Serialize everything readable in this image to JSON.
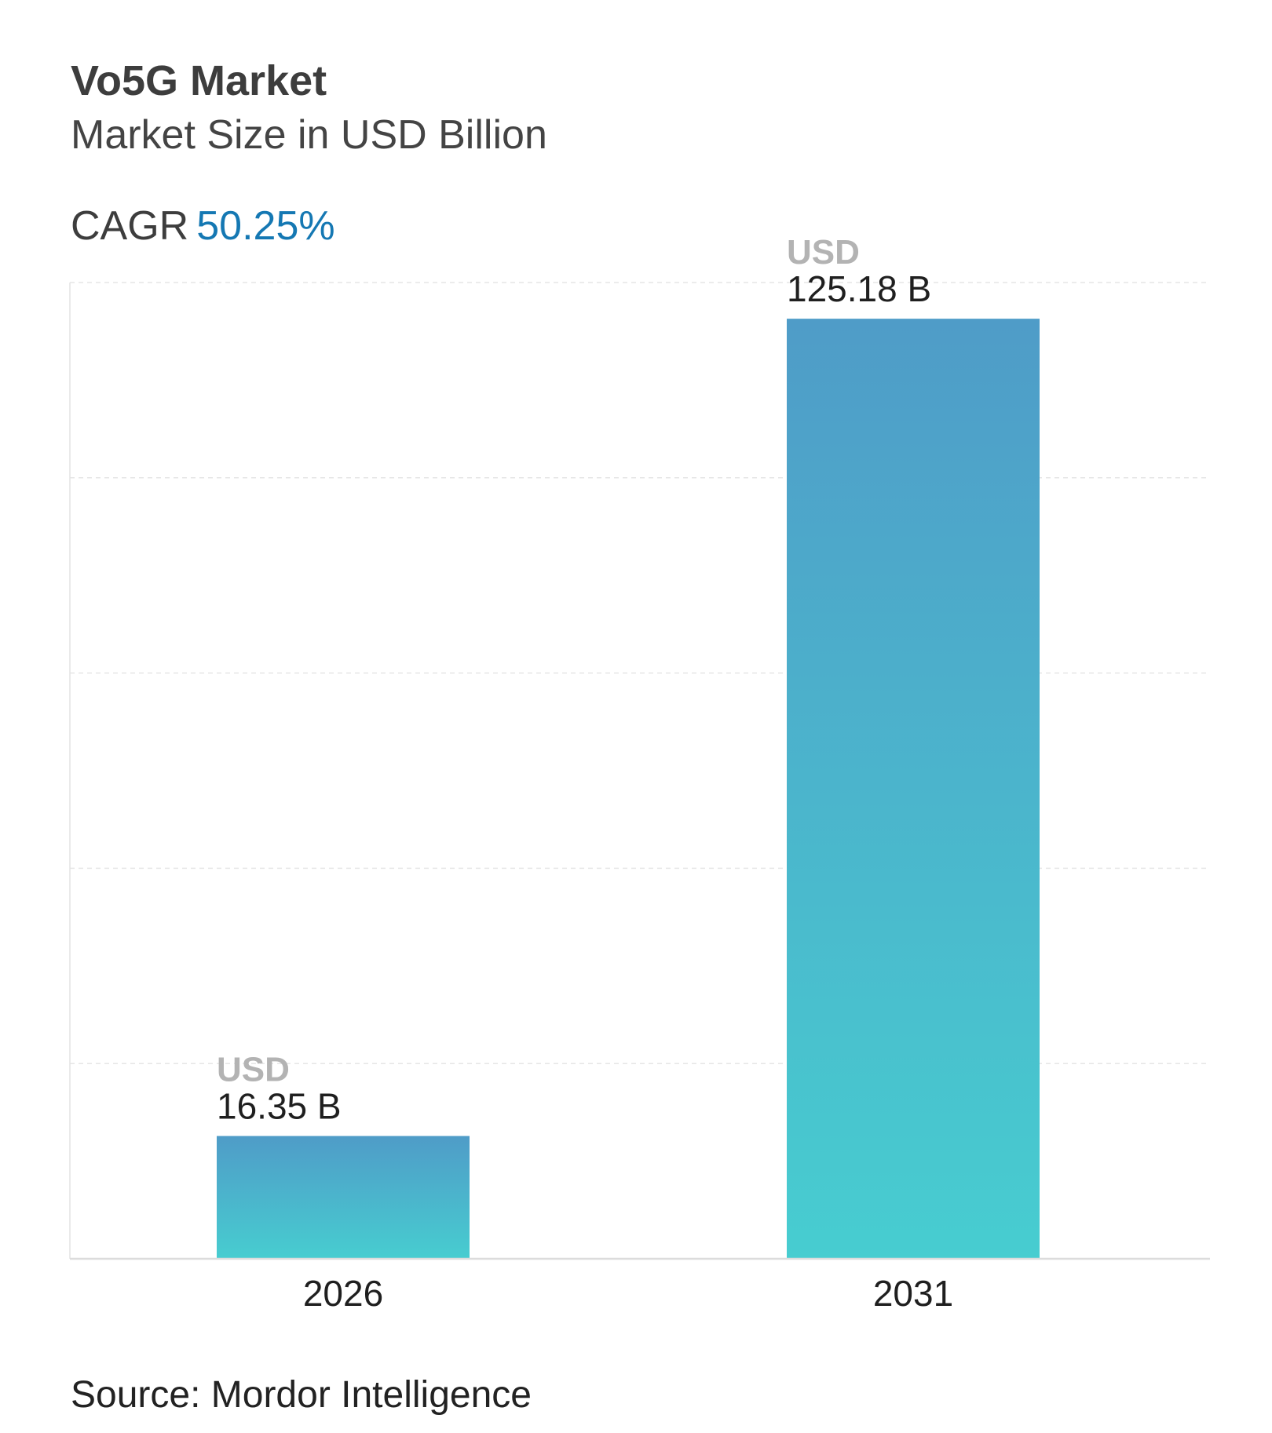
{
  "header": {
    "title": "Vo5G Market",
    "subtitle": "Market Size in USD Billion",
    "cagr_label": "CAGR",
    "cagr_value": "50.25%"
  },
  "source": "Source: Mordor Intelligence",
  "colors": {
    "accent": "#1578b3",
    "bar_top": "#4f9cc8",
    "bar_bottom": "#47cdd0"
  },
  "chart_data": {
    "type": "bar",
    "title": "Vo5G Market",
    "subtitle": "Market Size in USD Billion",
    "categories": [
      "2026",
      "2031"
    ],
    "values": [
      16.35,
      125.18
    ],
    "value_prefix": "USD",
    "value_labels": [
      "16.35 B",
      "125.18 B"
    ],
    "xlabel": "",
    "ylabel": "",
    "ylim": [
      0,
      130
    ],
    "grid": true
  }
}
